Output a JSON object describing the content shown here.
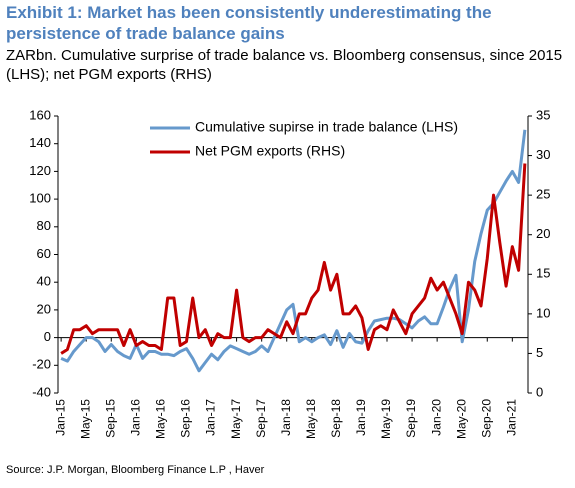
{
  "chart_data": {
    "type": "line",
    "title": "Exhibit 1: Market has been consistently underestimating the persistence of trade balance gains",
    "subtitle": "ZARbn. Cumulative surprise of trade balance vs. Bloomberg consensus, since 2015 (LHS); net PGM exports (RHS)",
    "source": "Source: J.P. Morgan, Bloomberg Finance L.P , Haver",
    "categories": [
      "Jan-15",
      null,
      null,
      null,
      "May-15",
      null,
      null,
      null,
      "Sep-15",
      null,
      null,
      null,
      "Jan-16",
      null,
      null,
      null,
      "May-16",
      null,
      null,
      null,
      "Sep-16",
      null,
      null,
      null,
      "Jan-17",
      null,
      null,
      null,
      "May-17",
      null,
      null,
      null,
      "Sep-17",
      null,
      null,
      null,
      "Jan-18",
      null,
      null,
      null,
      "May-18",
      null,
      null,
      null,
      "Sep-18",
      null,
      null,
      null,
      "Jan-19",
      null,
      null,
      null,
      "May-19",
      null,
      null,
      null,
      "Sep-19",
      null,
      null,
      null,
      "Jan-20",
      null,
      null,
      null,
      "May-20",
      null,
      null,
      null,
      "Sep-20",
      null,
      null,
      null,
      "Jan-21",
      null,
      null
    ],
    "series": [
      {
        "name": "Cumulative supirse in trade balance (LHS)",
        "color": "#6699cc",
        "axis": "y",
        "values": [
          -15,
          -17,
          -10,
          -5,
          0,
          0,
          -3,
          -10,
          -5,
          -10,
          -13,
          -15,
          -5,
          -15,
          -10,
          -10,
          -12,
          -12,
          -13,
          -10,
          -8,
          -15,
          -24,
          -18,
          -12,
          -16,
          -10,
          -6,
          -8,
          -10,
          -12,
          -10,
          -6,
          -10,
          0,
          10,
          20,
          24,
          -3,
          0,
          -3,
          0,
          2,
          -5,
          5,
          -7,
          3,
          -3,
          -4,
          5,
          12,
          13,
          14,
          14,
          13,
          10,
          7,
          12,
          15,
          10,
          10,
          22,
          35,
          45,
          -3,
          20,
          55,
          75,
          92,
          97,
          105,
          113,
          120,
          112,
          150
        ]
      },
      {
        "name": "Net PGM exports (RHS)",
        "color": "#c00000",
        "axis": "y2",
        "values": [
          5,
          5.5,
          8,
          8,
          8.5,
          7.5,
          8,
          8,
          8,
          8,
          6,
          8,
          6,
          6.5,
          6,
          6,
          5.5,
          12,
          12,
          6,
          6.5,
          12,
          7,
          8,
          6,
          7.5,
          7,
          7,
          13,
          7,
          6.5,
          7,
          7,
          8,
          7.5,
          7,
          9,
          7.5,
          10,
          10,
          12,
          13,
          16.5,
          13,
          15,
          10,
          10,
          11,
          9.5,
          5.5,
          8,
          8.5,
          8,
          10.5,
          9,
          7.5,
          10,
          11,
          12,
          14.5,
          13,
          14,
          12,
          10,
          7.5,
          14,
          13,
          11,
          17,
          25,
          19,
          13.5,
          18.5,
          15.5,
          29
        ]
      }
    ],
    "ylim": [
      -40,
      160
    ],
    "yticks": [
      -40,
      -20,
      0,
      20,
      40,
      60,
      80,
      100,
      120,
      140,
      160
    ],
    "y2lim": [
      0,
      35
    ],
    "y2ticks": [
      0,
      5,
      10,
      15,
      20,
      25,
      30,
      35
    ],
    "grid": false,
    "legend": "top"
  }
}
